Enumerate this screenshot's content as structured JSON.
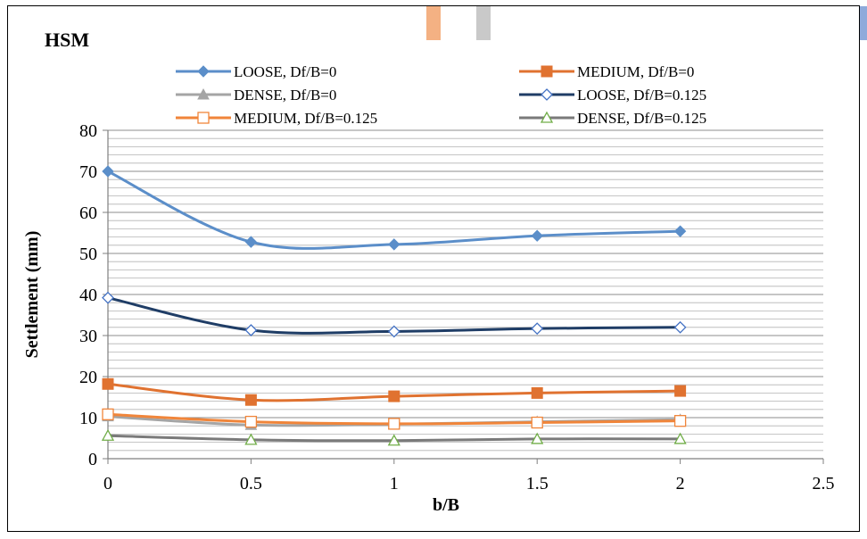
{
  "chart_data": {
    "type": "line",
    "title": "HSM",
    "xlabel": "b/B",
    "ylabel": "Settlement (mm)",
    "xlim": [
      0,
      2.5
    ],
    "ylim": [
      0,
      80
    ],
    "x_ticks": [
      "0",
      "0.5",
      "1",
      "1.5",
      "2",
      "2.5"
    ],
    "y_ticks": [
      "0",
      "10",
      "20",
      "30",
      "40",
      "50",
      "60",
      "70",
      "80"
    ],
    "y_tick_step": 10,
    "minor_grid_step": 2,
    "grid": true,
    "legend_position": "top",
    "x": [
      0,
      0.5,
      1,
      1.5,
      2
    ],
    "series": [
      {
        "name": "LOOSE, Df/B=0",
        "values": [
          70,
          52.8,
          52.2,
          54.3,
          55.4
        ],
        "color": "#5b8ec9",
        "marker": "diamond-filled",
        "stroke": 3
      },
      {
        "name": "MEDIUM, Df/B=0",
        "values": [
          18.2,
          14.3,
          15.2,
          16,
          16.5
        ],
        "color": "#e07230",
        "marker": "square-filled",
        "stroke": 3
      },
      {
        "name": "DENSE, Df/B=0",
        "values": [
          10.3,
          8.2,
          8.4,
          9,
          9.5
        ],
        "color": "#a5a5a5",
        "marker": "triangle-filled",
        "stroke": 3
      },
      {
        "name": "LOOSE, Df/B=0.125",
        "values": [
          39.2,
          31.3,
          31,
          31.7,
          32
        ],
        "color": "#1f3d66",
        "marker": "diamond-open",
        "stroke": 3
      },
      {
        "name": "MEDIUM, Df/B=0.125",
        "values": [
          10.8,
          9,
          8.5,
          8.8,
          9.2
        ],
        "color": "#f0853a",
        "marker": "square-open",
        "stroke": 3
      },
      {
        "name": "DENSE, Df/B=0.125",
        "values": [
          5.6,
          4.6,
          4.4,
          4.8,
          4.8
        ],
        "color": "#7a7a7a",
        "marker": "triangle-open",
        "stroke": 3
      }
    ]
  },
  "decorations": {
    "tab_colors": [
      "#f4b183",
      "#c9c9c9",
      "#8eaadb"
    ],
    "grid_color": "#7f7f7f",
    "marker_edge_green": "#70ad47"
  }
}
